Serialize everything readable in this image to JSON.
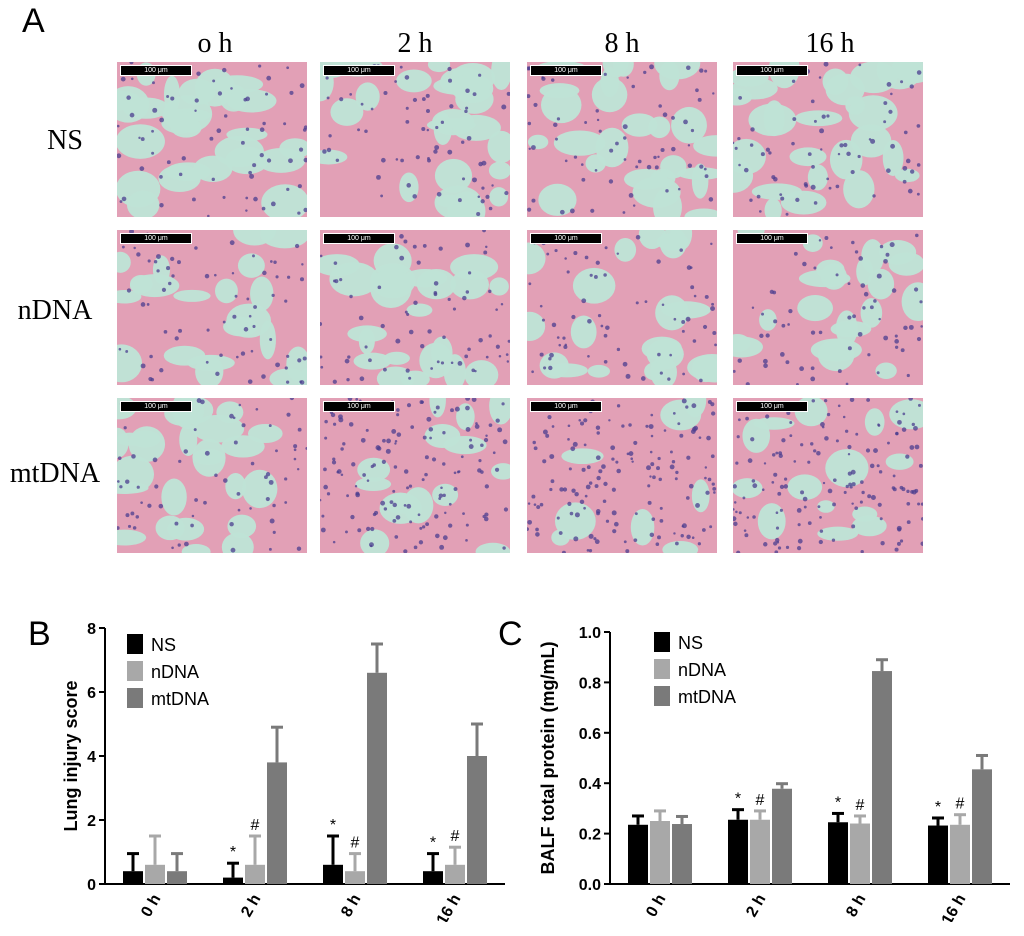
{
  "panel_a": {
    "letter": "A",
    "columns": [
      "o h",
      "2 h",
      "8 h",
      "16 h"
    ],
    "rows": [
      "NS",
      "nDNA",
      "mtDNA"
    ],
    "scale_bar": "100 μm",
    "tissue_colors": {
      "background": "#bfe3d6",
      "tissue": "#e2a0b6",
      "nuclei": "#4b3e8f"
    }
  },
  "panel_b": {
    "letter": "B"
  },
  "panel_c": {
    "letter": "C"
  },
  "chart_data": [
    {
      "type": "bar",
      "categories": [
        "0 h",
        "2 h",
        "8 h",
        "16 h"
      ],
      "ylabel": "Lung injury score",
      "xlabel": "",
      "ylim": [
        0,
        8
      ],
      "yticks": [
        "0",
        "2",
        "4",
        "6",
        "8"
      ],
      "series": [
        {
          "name": "NS",
          "color": "#000000",
          "values": [
            0.4,
            0.2,
            0.6,
            0.4
          ],
          "errors": [
            0.55,
            0.45,
            0.9,
            0.55
          ]
        },
        {
          "name": "nDNA",
          "color": "#a8a8a8",
          "values": [
            0.6,
            0.6,
            0.4,
            0.6
          ],
          "errors": [
            0.9,
            0.9,
            0.55,
            0.55
          ]
        },
        {
          "name": "mtDNA",
          "color": "#7a7a7a",
          "values": [
            0.4,
            3.8,
            6.6,
            4.0
          ],
          "errors": [
            0.55,
            1.1,
            0.9,
            1.0
          ]
        }
      ],
      "annotations": [
        {
          "category": "2 h",
          "series": "NS",
          "text": "*"
        },
        {
          "category": "2 h",
          "series": "nDNA",
          "text": "#"
        },
        {
          "category": "8 h",
          "series": "NS",
          "text": "*"
        },
        {
          "category": "8 h",
          "series": "nDNA",
          "text": "#"
        },
        {
          "category": "16 h",
          "series": "NS",
          "text": "*"
        },
        {
          "category": "16 h",
          "series": "nDNA",
          "text": "#"
        }
      ],
      "legend": "top-left"
    },
    {
      "type": "bar",
      "categories": [
        "0 h",
        "2 h",
        "8 h",
        "16 h"
      ],
      "ylabel": "BALF total protein (mg/mL)",
      "xlabel": "",
      "ylim": [
        0,
        1.0
      ],
      "yticks": [
        "0.0",
        "0.2",
        "0.4",
        "0.6",
        "0.8",
        "1.0"
      ],
      "series": [
        {
          "name": "NS",
          "color": "#000000",
          "values": [
            0.235,
            0.255,
            0.245,
            0.232
          ],
          "errors": [
            0.035,
            0.04,
            0.035,
            0.03
          ]
        },
        {
          "name": "nDNA",
          "color": "#a8a8a8",
          "values": [
            0.25,
            0.255,
            0.24,
            0.235
          ],
          "errors": [
            0.04,
            0.035,
            0.03,
            0.04
          ]
        },
        {
          "name": "mtDNA",
          "color": "#7a7a7a",
          "values": [
            0.238,
            0.378,
            0.845,
            0.455
          ],
          "errors": [
            0.03,
            0.02,
            0.045,
            0.055
          ]
        }
      ],
      "annotations": [
        {
          "category": "2 h",
          "series": "NS",
          "text": "*"
        },
        {
          "category": "2 h",
          "series": "nDNA",
          "text": "#"
        },
        {
          "category": "8 h",
          "series": "NS",
          "text": "*"
        },
        {
          "category": "8 h",
          "series": "nDNA",
          "text": "#"
        },
        {
          "category": "16 h",
          "series": "NS",
          "text": "*"
        },
        {
          "category": "16 h",
          "series": "nDNA",
          "text": "#"
        }
      ],
      "legend": "top-left"
    }
  ]
}
